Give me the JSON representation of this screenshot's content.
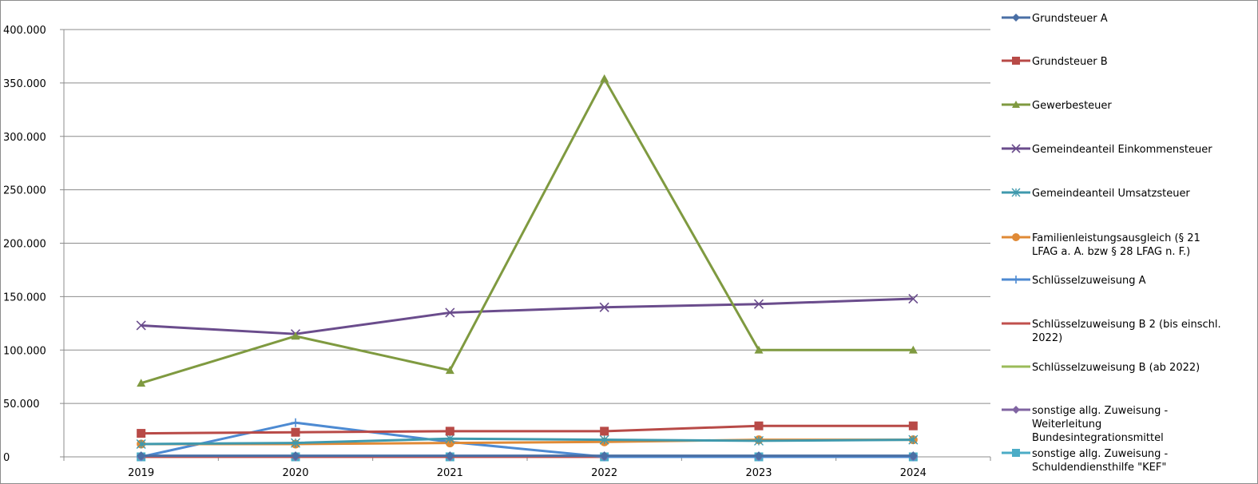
{
  "chart_data": {
    "type": "line",
    "categories": [
      "2019",
      "2020",
      "2021",
      "2022",
      "2023",
      "2024"
    ],
    "ylim": [
      0,
      400000
    ],
    "yticks": [
      0,
      50000,
      100000,
      150000,
      200000,
      250000,
      300000,
      350000,
      400000
    ],
    "ytick_labels": [
      "0",
      "50.000",
      "100.000",
      "150.000",
      "200.000",
      "250.000",
      "300.000",
      "350.000",
      "400.000"
    ],
    "grid": true,
    "legend_position": "right",
    "series": [
      {
        "name": "Grundsteuer  A",
        "color": "#4a6fa5",
        "marker": "diamond",
        "values": [
          1000,
          1000,
          1000,
          1000,
          1000,
          1000
        ]
      },
      {
        "name": "Grundsteuer B",
        "color": "#b84a47",
        "marker": "square",
        "values": [
          22000,
          23000,
          24000,
          24000,
          29000,
          29000
        ]
      },
      {
        "name": "Gewerbesteuer",
        "color": "#7f9a40",
        "marker": "triangle",
        "values": [
          69000,
          113000,
          81000,
          354000,
          100000,
          100000
        ]
      },
      {
        "name": "Gemeindeanteil Einkommensteuer",
        "color": "#6a4c8c",
        "marker": "x",
        "values": [
          123000,
          115000,
          135000,
          140000,
          143000,
          148000
        ]
      },
      {
        "name": "Gemeindeanteil Umsatzsteuer",
        "color": "#3f99ad",
        "marker": "asterisk",
        "values": [
          12000,
          13000,
          17000,
          16000,
          15000,
          16000
        ]
      },
      {
        "name": "Familienleistungsausgleich (§ 21 LFAG a. A. bzw § 28 LFAG n. F.)",
        "color": "#e08a36",
        "marker": "circle",
        "values": [
          12000,
          12000,
          13000,
          14000,
          16000,
          16000
        ]
      },
      {
        "name": "Schlüsselzuweisung A",
        "color": "#4d8ad2",
        "marker": "plus",
        "values": [
          0,
          32000,
          14000,
          0,
          0,
          0
        ]
      },
      {
        "name": "Schlüsselzuweisung B 2 (bis einschl. 2022)",
        "color": "#c0504d",
        "marker": "none",
        "values": [
          0,
          0,
          0,
          0,
          0,
          0
        ]
      },
      {
        "name": "Schlüsselzuweisung B (ab 2022)",
        "color": "#9bbb59",
        "marker": "none",
        "values": [
          0,
          0,
          0,
          0,
          0,
          0
        ]
      },
      {
        "name": "sonstige allg. Zuweisung - Weiterleitung Bundesintegrationsmittel",
        "color": "#8064a2",
        "marker": "diamond",
        "values": [
          0,
          0,
          0,
          0,
          0,
          0
        ]
      },
      {
        "name": "sonstige allg. Zuweisung - Schuldendiensthilfe \"KEF\"",
        "color": "#4bacc6",
        "marker": "square",
        "values": [
          0,
          0,
          0,
          0,
          0,
          0
        ]
      }
    ]
  }
}
